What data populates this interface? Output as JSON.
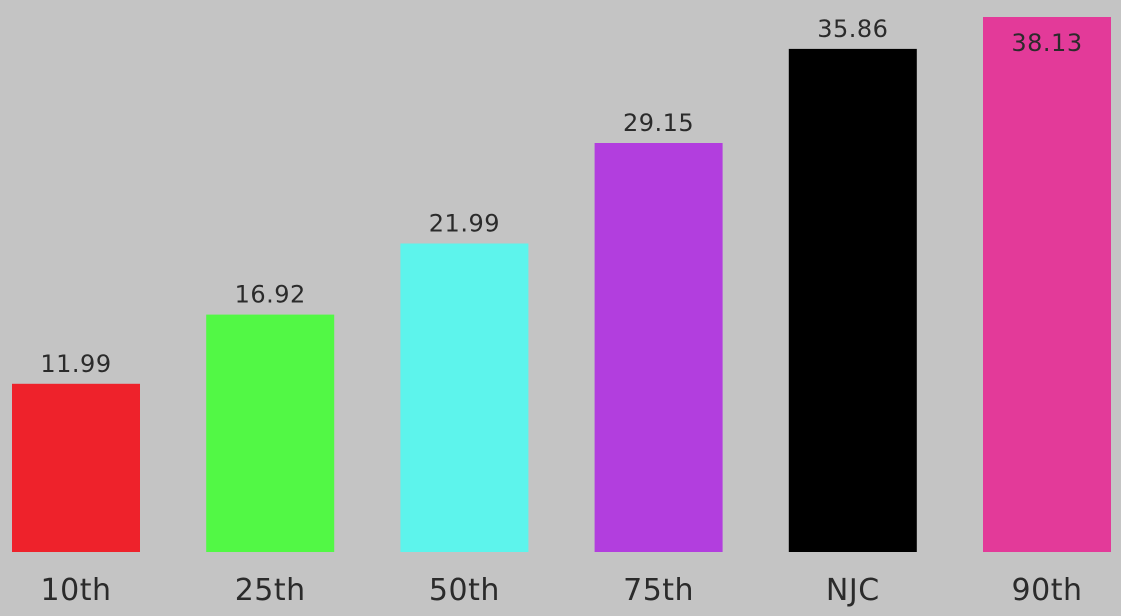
{
  "chart_data": {
    "type": "bar",
    "categories": [
      "10th",
      "25th",
      "50th",
      "75th",
      "NJC",
      "90th"
    ],
    "values": [
      11.99,
      16.92,
      21.99,
      29.15,
      35.86,
      38.13
    ],
    "value_labels": [
      "11.99",
      "16.92",
      "21.99",
      "29.15",
      "35.86",
      "38.13"
    ],
    "colors": [
      "#ee222b",
      "#52f845",
      "#5df4ec",
      "#b23ede",
      "#000000",
      "#e33a99"
    ],
    "title": "",
    "xlabel": "",
    "ylabel": "",
    "ylim": [
      0,
      38.13
    ],
    "grid": false,
    "legend": "none",
    "background": "#c4c4c4"
  }
}
